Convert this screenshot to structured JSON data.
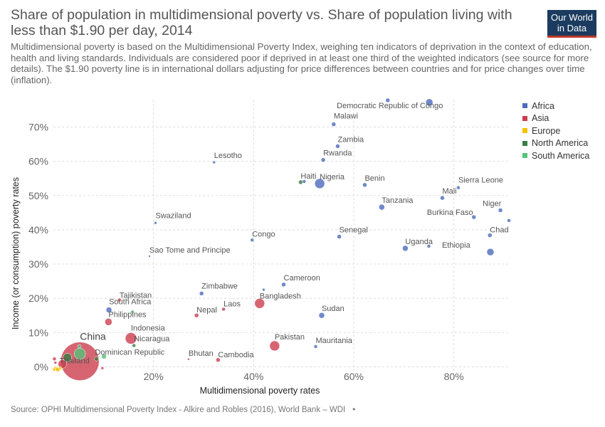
{
  "title": "Share of population in multidimensional poverty vs. Share of population living with less than $1.90 per day, 2014",
  "subtitle": "Multidimensional poverty is based on the Multidimensional Poverty Index, weighing ten indicators of deprivation in the context of education, health and living standards. Individuals are considered poor if deprived in at least one third of the weighted indicators (see source for more details). The $1.90 poverty line is in international dollars adjusting for price differences between countries and for price changes over time (inflation).",
  "logo": {
    "line1": "Our World",
    "line2": "in Data"
  },
  "source": "Source: OPHI Multidimensional Poverty Index - Alkire and Robles (2016), World Bank – WDI",
  "source_extra": "•",
  "colors": {
    "Africa": "#4c6bbd",
    "Asia": "#cc3d4e",
    "Europe": "#f3c200",
    "North America": "#3a7d44",
    "South America": "#55c27a"
  },
  "chart_data": {
    "type": "scatter",
    "title": "Share of population in multidimensional poverty vs. Share of population living with less than $1.90 per day, 2014",
    "xlabel": "Multidimensional poverty rates",
    "ylabel": "Income (or consumption) poverty rates",
    "xlim": [
      0,
      91
    ],
    "ylim": [
      -2,
      78
    ],
    "x_ticks": [
      20,
      40,
      60,
      80
    ],
    "x_tick_labels": [
      "20%",
      "40%",
      "60%",
      "80%"
    ],
    "y_ticks": [
      0,
      10,
      20,
      30,
      40,
      50,
      60,
      70
    ],
    "y_tick_labels": [
      "0%",
      "10%",
      "20%",
      "30%",
      "40%",
      "50%",
      "60%",
      "70%"
    ],
    "grid": true,
    "legend_position": "right",
    "legend": [
      "Africa",
      "Asia",
      "Europe",
      "North America",
      "South America"
    ],
    "points": [
      {
        "label": "Democratic Republic of Congo",
        "region": "Africa",
        "x": 75.1,
        "y": 77.2,
        "size": 5
      },
      {
        "label": "",
        "region": "Africa",
        "x": 66.8,
        "y": 77.8,
        "size": 3
      },
      {
        "label": "Malawi",
        "region": "Africa",
        "x": 56.0,
        "y": 70.8,
        "size": 3
      },
      {
        "label": "Zambia",
        "region": "Africa",
        "x": 56.8,
        "y": 64.4,
        "size": 3
      },
      {
        "label": "Rwanda",
        "region": "Africa",
        "x": 53.9,
        "y": 60.4,
        "size": 3
      },
      {
        "label": "Lesotho",
        "region": "Africa",
        "x": 32.1,
        "y": 59.7,
        "size": 2
      },
      {
        "label": "Haiti",
        "region": "North America",
        "x": 49.4,
        "y": 53.9,
        "size": 3
      },
      {
        "label": "",
        "region": "Africa",
        "x": 50.1,
        "y": 54.1,
        "size": 2.5
      },
      {
        "label": "Nigeria",
        "region": "Africa",
        "x": 53.2,
        "y": 53.5,
        "size": 7
      },
      {
        "label": "Benin",
        "region": "Africa",
        "x": 62.2,
        "y": 53.1,
        "size": 3
      },
      {
        "label": "Sierra Leone",
        "region": "Africa",
        "x": 80.9,
        "y": 52.3,
        "size": 2.5
      },
      {
        "label": "Mali",
        "region": "Africa",
        "x": 77.7,
        "y": 49.3,
        "size": 3
      },
      {
        "label": "Tanzania",
        "region": "Africa",
        "x": 65.6,
        "y": 46.6,
        "size": 4
      },
      {
        "label": "Niger",
        "region": "Africa",
        "x": 89.3,
        "y": 45.7,
        "size": 3
      },
      {
        "label": "Burkina Faso",
        "region": "Africa",
        "x": 84.0,
        "y": 43.7,
        "size": 3
      },
      {
        "label": "",
        "region": "Africa",
        "x": 91.0,
        "y": 42.7,
        "size": 2.5
      },
      {
        "label": "Swaziland",
        "region": "Africa",
        "x": 20.4,
        "y": 42.0,
        "size": 2
      },
      {
        "label": "Senegal",
        "region": "Africa",
        "x": 57.1,
        "y": 38.0,
        "size": 3
      },
      {
        "label": "Chad",
        "region": "Africa",
        "x": 87.2,
        "y": 38.4,
        "size": 3
      },
      {
        "label": "Congo",
        "region": "Africa",
        "x": 39.7,
        "y": 37.0,
        "size": 2.5
      },
      {
        "label": "Uganda",
        "region": "Africa",
        "x": 70.3,
        "y": 34.6,
        "size": 4
      },
      {
        "label": "",
        "region": "Africa",
        "x": 75.0,
        "y": 35.2,
        "size": 2.5
      },
      {
        "label": "Ethiopia",
        "region": "Africa",
        "x": 87.3,
        "y": 33.5,
        "size": 5
      },
      {
        "label": "Sao Tome and Principe",
        "region": "Africa",
        "x": 19.2,
        "y": 32.3,
        "size": 1.5
      },
      {
        "label": "Cameroon",
        "region": "Africa",
        "x": 46.0,
        "y": 24.0,
        "size": 3
      },
      {
        "label": "",
        "region": "Africa",
        "x": 42.0,
        "y": 22.5,
        "size": 2
      },
      {
        "label": "Zimbabwe",
        "region": "Africa",
        "x": 29.6,
        "y": 21.4,
        "size": 3
      },
      {
        "label": "Tajikistan",
        "region": "Asia",
        "x": 13.2,
        "y": 19.5,
        "size": 2.5
      },
      {
        "label": "Bangladesh",
        "region": "Asia",
        "x": 41.2,
        "y": 18.5,
        "size": 7
      },
      {
        "label": "South Africa",
        "region": "Africa",
        "x": 11.1,
        "y": 16.6,
        "size": 4
      },
      {
        "label": "Laos",
        "region": "Asia",
        "x": 34.0,
        "y": 16.8,
        "size": 2.5
      },
      {
        "label": "Nepal",
        "region": "Asia",
        "x": 28.6,
        "y": 15.0,
        "size": 3
      },
      {
        "label": "Sudan",
        "region": "Africa",
        "x": 53.6,
        "y": 15.0,
        "size": 4
      },
      {
        "label": "Philippines",
        "region": "Asia",
        "x": 11.0,
        "y": 13.1,
        "size": 5
      },
      {
        "label": "",
        "region": "South America",
        "x": 15.8,
        "y": 16.0,
        "size": 2.5
      },
      {
        "label": "Indonesia",
        "region": "Asia",
        "x": 15.5,
        "y": 8.3,
        "size": 8
      },
      {
        "label": "Nicaragua",
        "region": "North America",
        "x": 16.1,
        "y": 6.2,
        "size": 2.5
      },
      {
        "label": "Pakistan",
        "region": "Asia",
        "x": 44.2,
        "y": 6.1,
        "size": 7
      },
      {
        "label": "Mauritania",
        "region": "Africa",
        "x": 52.4,
        "y": 5.9,
        "size": 2.5
      },
      {
        "label": "China",
        "region": "Asia",
        "x": 5.3,
        "y": 1.6,
        "size": 27
      },
      {
        "label": "",
        "region": "South America",
        "x": 5.2,
        "y": 6.0,
        "size": 2.5
      },
      {
        "label": "",
        "region": "South America",
        "x": 5.3,
        "y": 3.8,
        "size": 8
      },
      {
        "label": "",
        "region": "North America",
        "x": 2.8,
        "y": 2.7,
        "size": 6
      },
      {
        "label": "Dominican Republic",
        "region": "North America",
        "x": 8.6,
        "y": 2.3,
        "size": 3
      },
      {
        "label": "",
        "region": "South America",
        "x": 10.1,
        "y": 3.0,
        "size": 3.5
      },
      {
        "label": "Thailand",
        "region": "Asia",
        "x": 1.8,
        "y": 0.8,
        "size": 6
      },
      {
        "label": "Bhutan",
        "region": "Asia",
        "x": 27.0,
        "y": 2.2,
        "size": 1.5
      },
      {
        "label": "Cambodia",
        "region": "Asia",
        "x": 32.9,
        "y": 2.0,
        "size": 3
      },
      {
        "label": "",
        "region": "Asia",
        "x": 0.2,
        "y": 2.3,
        "size": 2.5
      },
      {
        "label": "",
        "region": "Asia",
        "x": 9.8,
        "y": -0.4,
        "size": 2
      },
      {
        "label": "",
        "region": "Asia",
        "x": 0.4,
        "y": 1.2,
        "size": 2
      },
      {
        "label": "",
        "region": "Europe",
        "x": 0.5,
        "y": -0.6,
        "size": 3
      },
      {
        "label": "",
        "region": "Europe",
        "x": 0.9,
        "y": -0.8,
        "size": 3
      },
      {
        "label": "",
        "region": "Europe",
        "x": 0.1,
        "y": -0.8,
        "size": 2
      },
      {
        "label": "",
        "region": "Europe",
        "x": 1.4,
        "y": -0.4,
        "size": 2
      }
    ]
  }
}
